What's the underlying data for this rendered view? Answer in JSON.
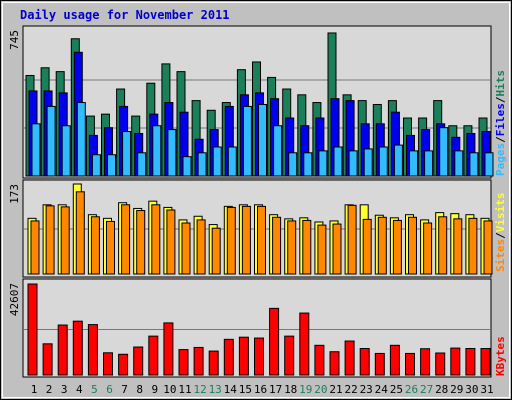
{
  "title": "Daily usage for November 2011",
  "colors": {
    "title": "#0000cc",
    "hits": "#1b7f5a",
    "files": "#0000ee",
    "pages": "#33bbff",
    "visits": "#ffff33",
    "sites": "#ff8800",
    "kbytes": "#ff0000",
    "weekend_label": "#1b7f5a",
    "panel_bg": "#d8d8d8",
    "frame_bg": "#c0c0c0"
  },
  "chart_data": [
    {
      "type": "bar",
      "panel": "top",
      "ymax_label": "745",
      "legend": [
        "Pages",
        "/",
        "Files",
        "/",
        "Hits"
      ],
      "categories": [
        "1",
        "2",
        "3",
        "4",
        "5",
        "6",
        "7",
        "8",
        "9",
        "10",
        "11",
        "12",
        "13",
        "14",
        "15",
        "16",
        "17",
        "18",
        "19",
        "20",
        "21",
        "22",
        "23",
        "24",
        "25",
        "26",
        "27",
        "28",
        "29",
        "30",
        "31"
      ],
      "weekend_days": [
        "5",
        "6",
        "12",
        "13",
        "19",
        "20",
        "26",
        "27"
      ],
      "series": [
        {
          "name": "Hits",
          "values": [
            520,
            560,
            540,
            710,
            310,
            320,
            450,
            310,
            480,
            580,
            540,
            390,
            340,
            380,
            550,
            590,
            510,
            450,
            420,
            380,
            740,
            420,
            390,
            370,
            390,
            300,
            300,
            390,
            260,
            260,
            300
          ]
        },
        {
          "name": "Files",
          "values": [
            440,
            440,
            430,
            640,
            210,
            250,
            360,
            220,
            320,
            380,
            330,
            190,
            240,
            360,
            420,
            430,
            400,
            300,
            260,
            300,
            400,
            390,
            270,
            270,
            330,
            210,
            240,
            270,
            200,
            220,
            230
          ]
        },
        {
          "name": "Pages",
          "values": [
            270,
            360,
            260,
            380,
            110,
            110,
            230,
            120,
            260,
            240,
            100,
            120,
            150,
            150,
            360,
            370,
            260,
            120,
            120,
            130,
            150,
            130,
            140,
            150,
            160,
            130,
            130,
            250,
            130,
            120,
            120
          ]
        }
      ]
    },
    {
      "type": "bar",
      "panel": "middle",
      "ymax_label": "173",
      "legend": [
        "Sites",
        "/",
        "Visits"
      ],
      "categories": [
        "1",
        "2",
        "3",
        "4",
        "5",
        "6",
        "7",
        "8",
        "9",
        "10",
        "11",
        "12",
        "13",
        "14",
        "15",
        "16",
        "17",
        "18",
        "19",
        "20",
        "21",
        "22",
        "23",
        "24",
        "25",
        "26",
        "27",
        "28",
        "29",
        "30",
        "31"
      ],
      "series": [
        {
          "name": "Visits",
          "values": [
            107,
            133,
            133,
            173,
            114,
            107,
            137,
            126,
            140,
            128,
            104,
            111,
            95,
            130,
            133,
            133,
            114,
            106,
            108,
            100,
            102,
            133,
            133,
            113,
            108,
            114,
            104,
            118,
            116,
            114,
            107
          ]
        },
        {
          "name": "Sites",
          "values": [
            102,
            131,
            129,
            158,
            110,
            101,
            133,
            122,
            133,
            123,
            98,
            104,
            88,
            128,
            130,
            130,
            109,
            102,
            103,
            94,
            96,
            132,
            105,
            109,
            103,
            109,
            98,
            110,
            106,
            107,
            102
          ]
        }
      ]
    },
    {
      "type": "bar",
      "panel": "bottom",
      "ymax_label": "42607",
      "legend": [
        "KBytes"
      ],
      "categories": [
        "1",
        "2",
        "3",
        "4",
        "5",
        "6",
        "7",
        "8",
        "9",
        "10",
        "11",
        "12",
        "13",
        "14",
        "15",
        "16",
        "17",
        "18",
        "19",
        "20",
        "21",
        "22",
        "23",
        "24",
        "25",
        "26",
        "27",
        "28",
        "29",
        "30",
        "31"
      ],
      "series": [
        {
          "name": "KBytes",
          "values": [
            42607,
            14600,
            23400,
            25200,
            23600,
            10400,
            9700,
            13100,
            18200,
            24400,
            11900,
            12900,
            11200,
            16700,
            17700,
            17300,
            31200,
            18200,
            29000,
            13900,
            10900,
            15900,
            12400,
            10100,
            13900,
            10100,
            12300,
            10300,
            12600,
            12400,
            12400
          ]
        }
      ]
    }
  ]
}
